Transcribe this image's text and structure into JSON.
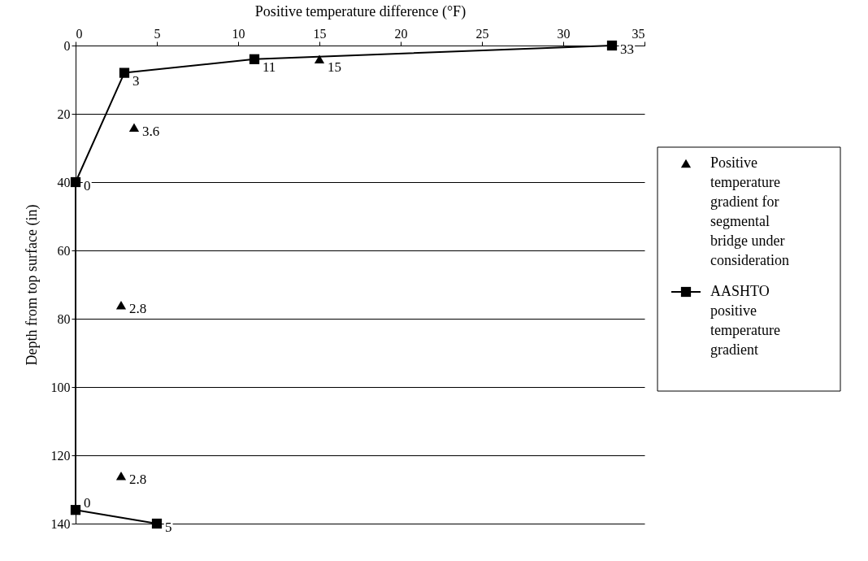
{
  "chart_data": {
    "type": "line",
    "xlabel": "Positive temperature difference (°F)",
    "ylabel": "Depth from top surface (in)",
    "xlim": [
      0,
      35
    ],
    "xticks": [
      0,
      5,
      10,
      15,
      20,
      25,
      30,
      35
    ],
    "ylim": [
      140,
      0
    ],
    "yticks": [
      0,
      20,
      40,
      60,
      80,
      100,
      120,
      140
    ],
    "grid": "y",
    "legend": "right",
    "series": [
      {
        "name": "Positive temperature gradient for segmental bridge under consideration",
        "type": "scatter",
        "marker": "triangle",
        "color": "#000000",
        "x": [
          15,
          3.6,
          2.8,
          2.8
        ],
        "values": [
          4,
          24,
          76,
          126
        ]
      },
      {
        "name": "AASHTO positive temperature gradient",
        "marker": "square",
        "color": "#000000",
        "x": [
          33,
          11,
          3,
          0,
          0,
          5
        ],
        "values": [
          0,
          4,
          8,
          40,
          136,
          140
        ]
      }
    ],
    "annotations": [
      {
        "text": "15",
        "x": 15,
        "y": 4
      },
      {
        "text": "3.6",
        "x": 3.6,
        "y": 24
      },
      {
        "text": "2.8",
        "x": 2.8,
        "y": 76
      },
      {
        "text": "2.8",
        "x": 2.8,
        "y": 126
      },
      {
        "text": "33",
        "x": 33,
        "y": 0
      },
      {
        "text": "11",
        "x": 11,
        "y": 4
      },
      {
        "text": "3",
        "x": 3,
        "y": 8
      },
      {
        "text": "0",
        "x": 0,
        "y": 40
      },
      {
        "text": "0",
        "x": 0,
        "y": 136
      },
      {
        "text": "5",
        "x": 5,
        "y": 140
      }
    ]
  }
}
